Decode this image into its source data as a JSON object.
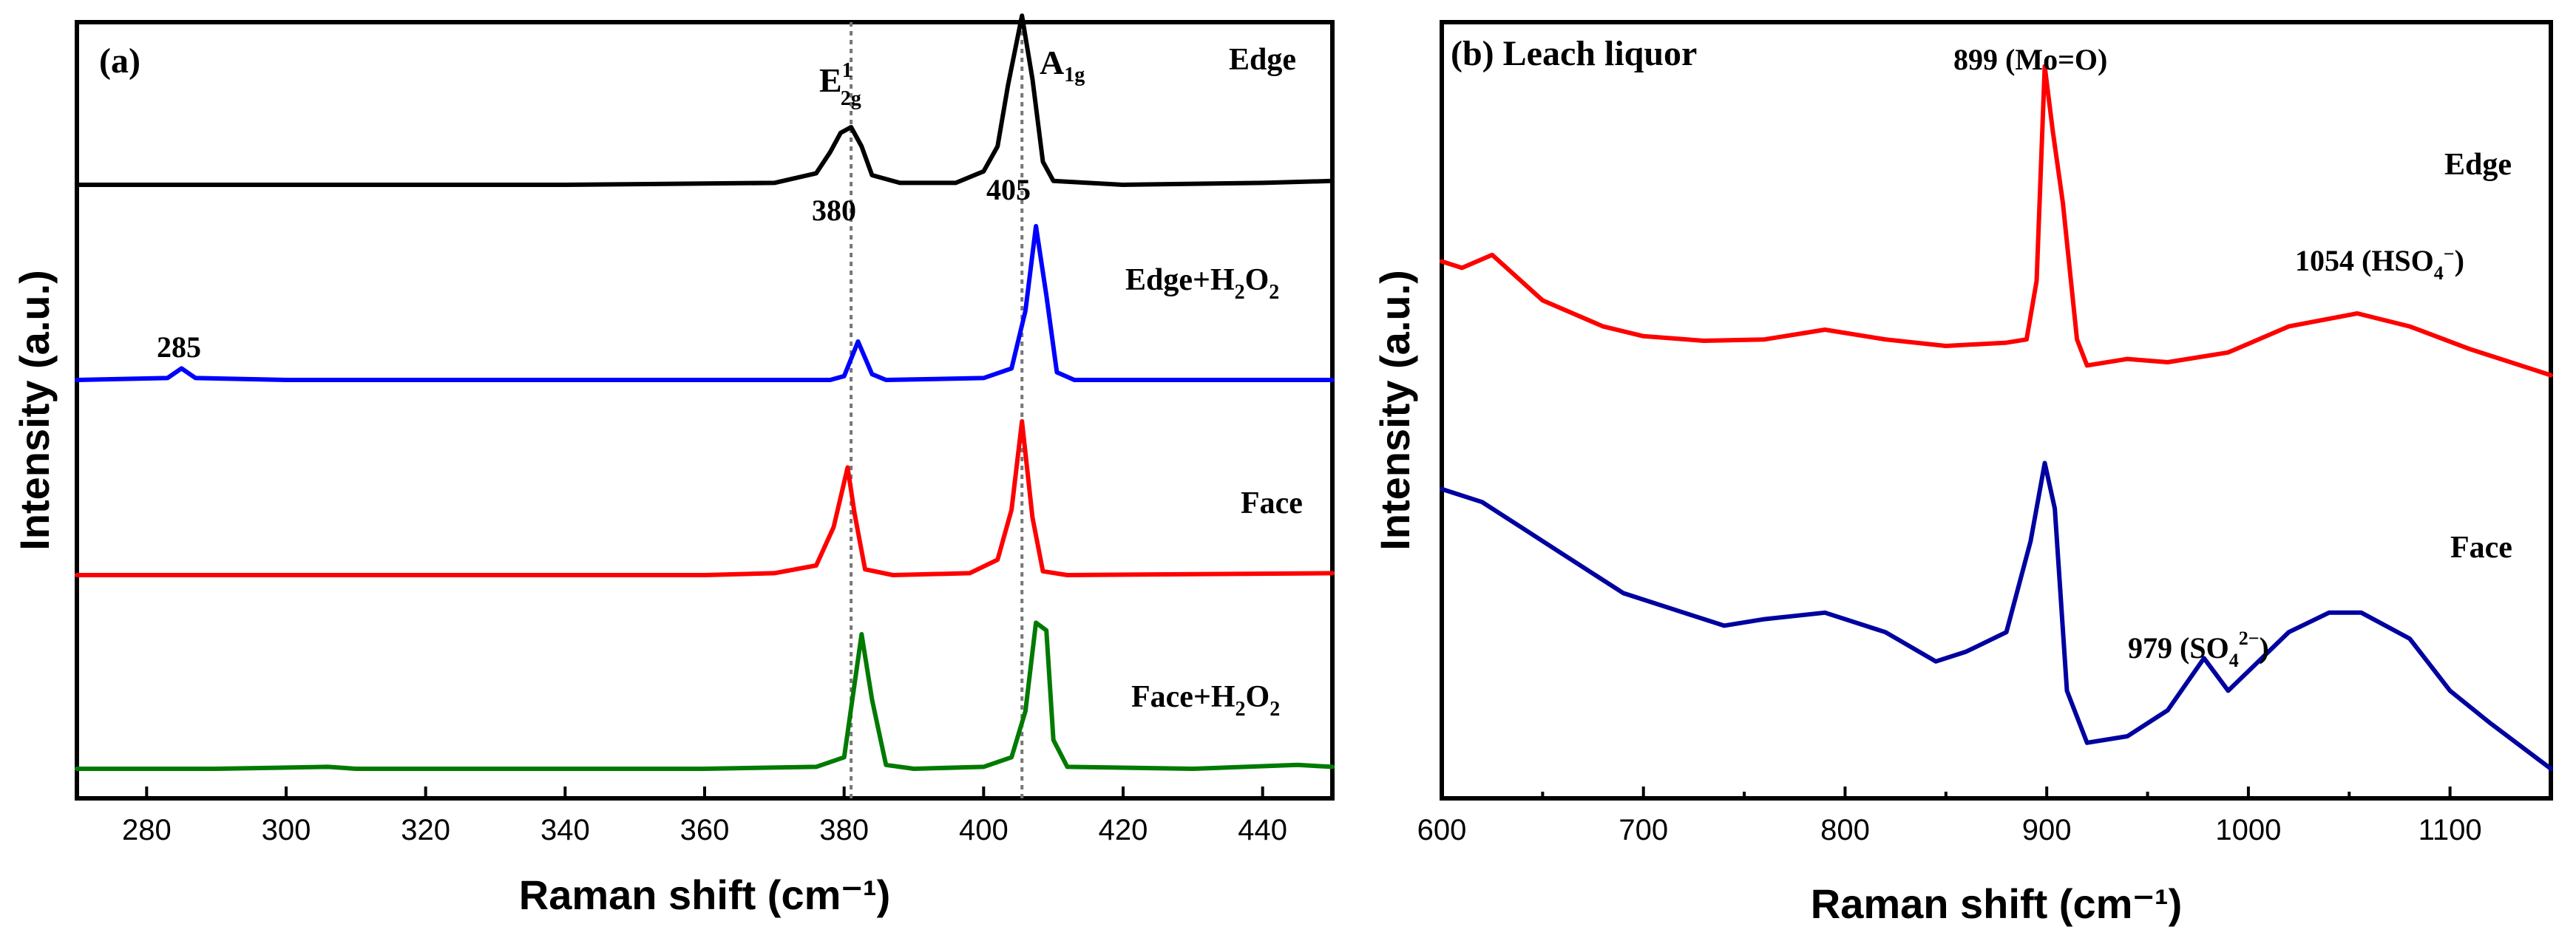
{
  "chart_data": [
    {
      "panel": "a",
      "type": "line",
      "panel_label": "(a)",
      "title": "",
      "xlabel": "Raman shift (cm⁻¹)",
      "ylabel": "Intensity (a.u.)",
      "xlim": [
        270,
        450
      ],
      "xticks": [
        280,
        300,
        320,
        340,
        360,
        380,
        400,
        420,
        440
      ],
      "reference_lines": [
        381,
        405.5
      ],
      "series": [
        {
          "name": "Edge",
          "label": "Edge",
          "color": "#000000",
          "offset": 3.05,
          "baseline": [
            [
              270,
              0.0
            ],
            [
              300,
              0.0
            ],
            [
              340,
              0.0
            ],
            [
              370,
              0.01
            ],
            [
              376,
              0.06
            ],
            [
              378,
              0.17
            ],
            [
              379.5,
              0.27
            ],
            [
              381,
              0.3
            ],
            [
              382.5,
              0.2
            ],
            [
              384,
              0.05
            ],
            [
              388,
              0.01
            ],
            [
              396,
              0.01
            ],
            [
              400,
              0.07
            ],
            [
              402,
              0.2
            ],
            [
              403.5,
              0.52
            ],
            [
              405.5,
              0.88
            ],
            [
              407,
              0.55
            ],
            [
              408.5,
              0.12
            ],
            [
              410,
              0.02
            ],
            [
              420,
              0.0
            ],
            [
              440,
              0.01
            ],
            [
              450,
              0.02
            ]
          ]
        },
        {
          "name": "Edge+H2O2",
          "label_main": "Edge+H",
          "label_sub": "2",
          "label_mid": "O",
          "label_sub2": "2",
          "color": "#0000ff",
          "offset": 2.05,
          "points": [
            [
              270,
              0.0
            ],
            [
              283,
              0.01
            ],
            [
              285,
              0.06
            ],
            [
              287,
              0.01
            ],
            [
              300,
              0.0
            ],
            [
              360,
              0.0
            ],
            [
              378,
              0.0
            ],
            [
              380,
              0.02
            ],
            [
              382,
              0.2
            ],
            [
              384,
              0.03
            ],
            [
              386,
              0.0
            ],
            [
              400,
              0.01
            ],
            [
              404,
              0.06
            ],
            [
              406,
              0.36
            ],
            [
              407.5,
              0.8
            ],
            [
              409,
              0.44
            ],
            [
              410.5,
              0.04
            ],
            [
              413,
              0.0
            ],
            [
              450,
              0.0
            ]
          ]
        },
        {
          "name": "Face",
          "label": "Face",
          "color": "#ff0000",
          "offset": 1.0,
          "points": [
            [
              270,
              0.0
            ],
            [
              300,
              0.0
            ],
            [
              360,
              0.0
            ],
            [
              370,
              0.01
            ],
            [
              376,
              0.05
            ],
            [
              378.5,
              0.25
            ],
            [
              380.5,
              0.56
            ],
            [
              381.5,
              0.32
            ],
            [
              383,
              0.03
            ],
            [
              387,
              0.0
            ],
            [
              398,
              0.01
            ],
            [
              402,
              0.08
            ],
            [
              404,
              0.34
            ],
            [
              405.5,
              0.8
            ],
            [
              407,
              0.3
            ],
            [
              408.5,
              0.02
            ],
            [
              412,
              0.0
            ],
            [
              450,
              0.01
            ]
          ]
        },
        {
          "name": "Face+H2O2",
          "label_main": "Face+H",
          "label_sub": "2",
          "label_mid": "O",
          "label_sub2": "2",
          "color": "#007a00",
          "offset": 0.0,
          "points": [
            [
              270,
              0.0
            ],
            [
              290,
              0.0
            ],
            [
              306,
              0.01
            ],
            [
              310,
              0.0
            ],
            [
              360,
              0.0
            ],
            [
              376,
              0.01
            ],
            [
              380,
              0.06
            ],
            [
              382.5,
              0.7
            ],
            [
              384,
              0.36
            ],
            [
              386,
              0.02
            ],
            [
              390,
              0.0
            ],
            [
              400,
              0.01
            ],
            [
              404,
              0.06
            ],
            [
              406,
              0.3
            ],
            [
              407.5,
              0.76
            ],
            [
              409,
              0.72
            ],
            [
              410,
              0.15
            ],
            [
              412,
              0.01
            ],
            [
              430,
              0.0
            ],
            [
              445,
              0.02
            ],
            [
              450,
              0.01
            ]
          ]
        }
      ],
      "annotations": [
        {
          "text": "E",
          "sup": "1",
          "sub": "2g"
        },
        {
          "text": "A",
          "sub": "1g"
        },
        {
          "text": "380"
        },
        {
          "text": "405"
        },
        {
          "text": "285"
        }
      ]
    },
    {
      "panel": "b",
      "type": "line",
      "panel_label": "(b) Leach liquor",
      "title": "",
      "xlabel": "Raman shift (cm⁻¹)",
      "ylabel": "Intensity (a.u.)",
      "xlim": [
        600,
        1150
      ],
      "xticks": [
        600,
        700,
        800,
        900,
        1000,
        1100
      ],
      "series": [
        {
          "name": "Edge",
          "label": "Edge",
          "color": "#ff0000",
          "points": [
            [
              600,
              0.78
            ],
            [
              610,
              0.77
            ],
            [
              625,
              0.79
            ],
            [
              650,
              0.72
            ],
            [
              680,
              0.68
            ],
            [
              700,
              0.665
            ],
            [
              730,
              0.658
            ],
            [
              760,
              0.66
            ],
            [
              790,
              0.675
            ],
            [
              820,
              0.66
            ],
            [
              850,
              0.65
            ],
            [
              880,
              0.655
            ],
            [
              890,
              0.66
            ],
            [
              895,
              0.75
            ],
            [
              899,
              1.08
            ],
            [
              903,
              0.98
            ],
            [
              908,
              0.87
            ],
            [
              915,
              0.66
            ],
            [
              920,
              0.62
            ],
            [
              940,
              0.63
            ],
            [
              960,
              0.625
            ],
            [
              990,
              0.64
            ],
            [
              1020,
              0.68
            ],
            [
              1054,
              0.7
            ],
            [
              1080,
              0.68
            ],
            [
              1110,
              0.645
            ],
            [
              1150,
              0.605
            ]
          ]
        },
        {
          "name": "Face",
          "label": "Face",
          "color": "#0000a0",
          "points": [
            [
              600,
              0.43
            ],
            [
              620,
              0.41
            ],
            [
              640,
              0.37
            ],
            [
              660,
              0.33
            ],
            [
              690,
              0.27
            ],
            [
              720,
              0.24
            ],
            [
              740,
              0.22
            ],
            [
              760,
              0.23
            ],
            [
              790,
              0.24
            ],
            [
              820,
              0.21
            ],
            [
              845,
              0.165
            ],
            [
              860,
              0.18
            ],
            [
              880,
              0.21
            ],
            [
              892,
              0.35
            ],
            [
              899,
              0.47
            ],
            [
              904,
              0.4
            ],
            [
              910,
              0.12
            ],
            [
              920,
              0.04
            ],
            [
              940,
              0.05
            ],
            [
              960,
              0.09
            ],
            [
              978,
              0.17
            ],
            [
              990,
              0.12
            ],
            [
              1000,
              0.15
            ],
            [
              1020,
              0.21
            ],
            [
              1040,
              0.24
            ],
            [
              1056,
              0.24
            ],
            [
              1080,
              0.2
            ],
            [
              1100,
              0.12
            ],
            [
              1120,
              0.07
            ],
            [
              1150,
              0.0
            ]
          ]
        }
      ],
      "annotations": [
        {
          "text": "899 (Mo=O)"
        },
        {
          "text": "1054 (HSO",
          "sub": "4",
          "sup": "−",
          "close": ")"
        },
        {
          "text": "979 (SO",
          "sub": "4",
          "sup": "2−",
          "close": ")"
        }
      ]
    }
  ]
}
